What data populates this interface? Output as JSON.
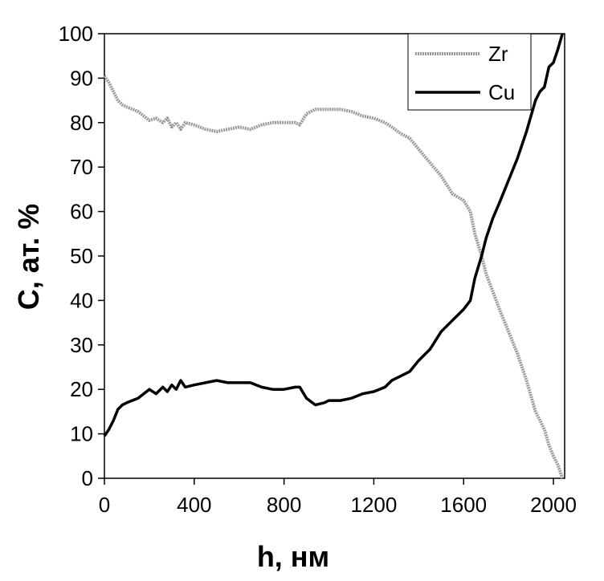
{
  "chart_data": {
    "type": "line",
    "title": "",
    "xlabel": "h, нм",
    "ylabel": "C, ат. %",
    "xlim": [
      0,
      2050
    ],
    "ylim": [
      0,
      100
    ],
    "xticks": [
      0,
      400,
      800,
      1200,
      1600,
      2000
    ],
    "yticks": [
      0,
      10,
      20,
      30,
      40,
      50,
      60,
      70,
      80,
      90,
      100
    ],
    "grid": false,
    "legend_position": "top-right",
    "series": [
      {
        "name": "Zr",
        "color": "#9a9a9a",
        "x": [
          0,
          20,
          40,
          60,
          80,
          100,
          150,
          200,
          230,
          260,
          280,
          300,
          320,
          340,
          360,
          400,
          450,
          500,
          550,
          600,
          650,
          700,
          750,
          800,
          850,
          870,
          900,
          940,
          980,
          1000,
          1050,
          1100,
          1150,
          1200,
          1250,
          1280,
          1320,
          1360,
          1400,
          1450,
          1500,
          1550,
          1600,
          1630,
          1650,
          1680,
          1700,
          1730,
          1760,
          1800,
          1840,
          1880,
          1920,
          1940,
          1960,
          1980,
          2000,
          2020,
          2040
        ],
        "y": [
          90.5,
          89,
          87,
          85,
          84,
          83.5,
          82.5,
          80.5,
          81,
          80,
          81,
          79,
          80,
          78.5,
          80,
          79.5,
          78.5,
          78,
          78.5,
          79,
          78.5,
          79.5,
          80,
          80,
          80,
          79.5,
          82,
          83,
          83,
          83,
          83,
          82.5,
          81.5,
          81,
          80,
          79,
          77.5,
          76.5,
          74,
          71,
          68,
          64,
          62.5,
          60,
          55,
          50,
          46,
          42,
          38,
          33,
          28,
          22,
          15,
          13,
          11,
          7.5,
          5,
          3,
          0
        ]
      },
      {
        "name": "Cu",
        "color": "#000000",
        "x": [
          0,
          20,
          40,
          60,
          80,
          100,
          150,
          200,
          230,
          260,
          280,
          300,
          320,
          340,
          360,
          400,
          450,
          500,
          550,
          600,
          650,
          700,
          750,
          800,
          850,
          870,
          900,
          940,
          980,
          1000,
          1050,
          1100,
          1150,
          1200,
          1250,
          1280,
          1320,
          1360,
          1400,
          1450,
          1500,
          1550,
          1600,
          1630,
          1650,
          1680,
          1700,
          1730,
          1760,
          1800,
          1840,
          1880,
          1920,
          1940,
          1960,
          1980,
          2000,
          2020,
          2040
        ],
        "y": [
          9.5,
          11,
          13,
          15.5,
          16.5,
          17,
          18,
          20,
          19,
          20.5,
          19.5,
          21,
          20,
          22,
          20.5,
          21,
          21.5,
          22,
          21.5,
          21.5,
          21.5,
          20.5,
          20,
          20,
          20.5,
          20.5,
          18,
          16.5,
          17,
          17.5,
          17.5,
          18,
          19,
          19.5,
          20.5,
          22,
          23,
          24,
          26.5,
          29,
          33,
          35.5,
          38,
          40,
          45,
          50,
          54,
          58.5,
          62,
          67,
          72,
          78,
          85,
          87,
          88,
          92.5,
          93.5,
          96.5,
          100
        ]
      }
    ]
  }
}
